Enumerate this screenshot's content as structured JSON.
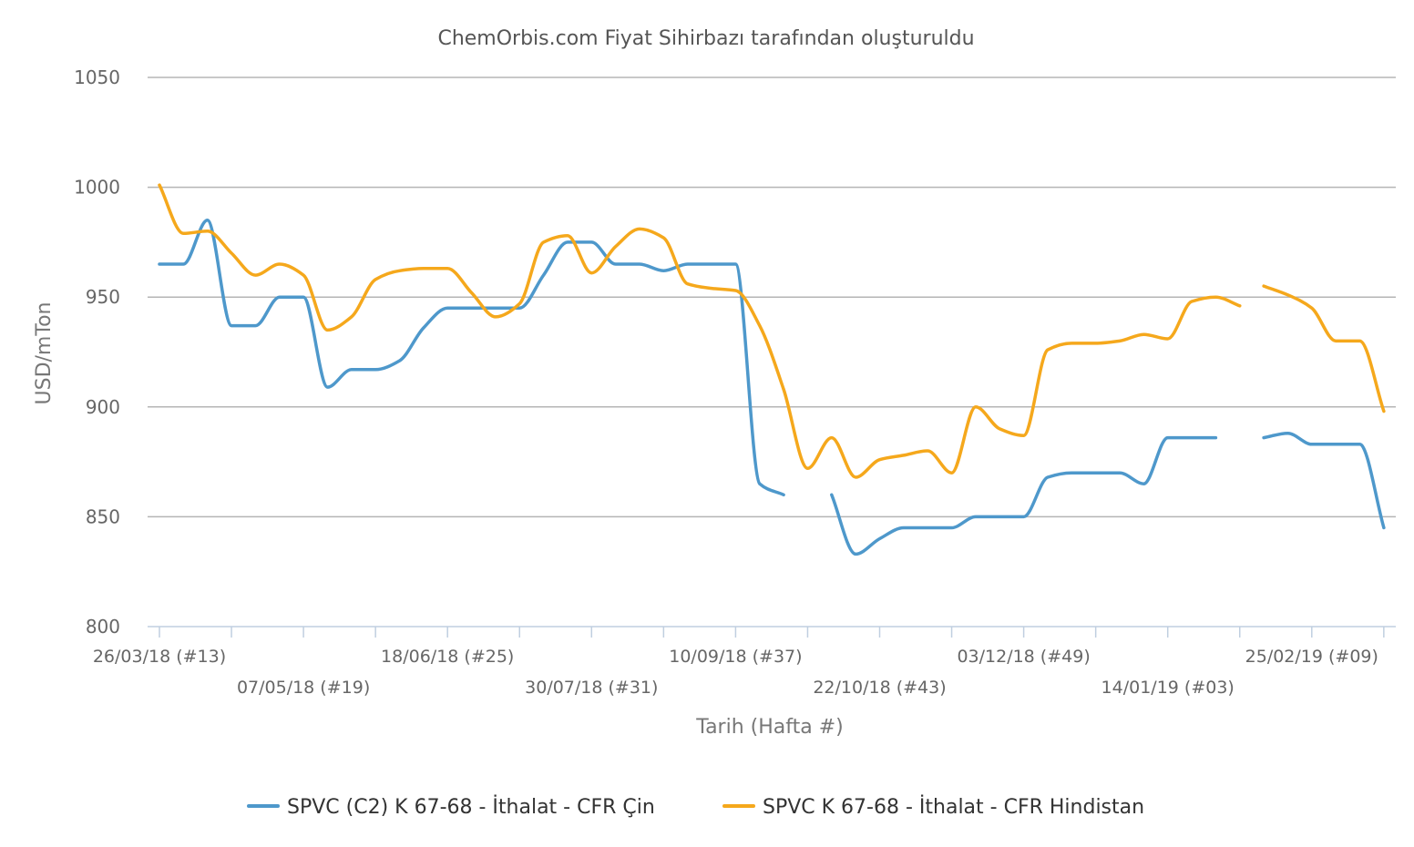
{
  "chart_data": {
    "type": "line",
    "title": "ChemOrbis.com Fiyat Sihirbazı tarafından oluşturuldu",
    "xlabel": "Tarih (Hafta #)",
    "ylabel": "USD/mTon",
    "ylim": [
      800,
      1050
    ],
    "yticks": [
      800,
      850,
      900,
      950,
      1000,
      1050
    ],
    "grid": true,
    "legend_position": "bottom",
    "x_tick_labels": [
      {
        "week": 0,
        "label": "26/03/18 (#13)"
      },
      {
        "week": 6,
        "label": "07/05/18 (#19)"
      },
      {
        "week": 12,
        "label": "18/06/18 (#25)"
      },
      {
        "week": 18,
        "label": "30/07/18 (#31)"
      },
      {
        "week": 24,
        "label": "10/09/18 (#37)"
      },
      {
        "week": 30,
        "label": "22/10/18 (#43)"
      },
      {
        "week": 36,
        "label": "03/12/18 (#49)"
      },
      {
        "week": 42,
        "label": "14/01/19 (#03)"
      },
      {
        "week": 48,
        "label": "25/02/19 (#09)"
      }
    ],
    "series": [
      {
        "name": "SPVC (C2) K 67-68 - İthalat - CFR Çin",
        "color": "#4e98cb",
        "segments": [
          [
            [
              0,
              965
            ],
            [
              1,
              965
            ],
            [
              2,
              985
            ],
            [
              3,
              937
            ],
            [
              4,
              937
            ],
            [
              5,
              950
            ],
            [
              6,
              950
            ],
            [
              7,
              909
            ],
            [
              8,
              917
            ],
            [
              9,
              917
            ],
            [
              10,
              921
            ],
            [
              11,
              936
            ],
            [
              12,
              945
            ],
            [
              13,
              945
            ],
            [
              14,
              945
            ],
            [
              15,
              945
            ],
            [
              16,
              960
            ],
            [
              17,
              975
            ],
            [
              18,
              975
            ],
            [
              19,
              965
            ],
            [
              20,
              965
            ],
            [
              21,
              962
            ],
            [
              22,
              965
            ],
            [
              23,
              965
            ],
            [
              24,
              965
            ],
            [
              25,
              865
            ],
            [
              26,
              860
            ]
          ],
          [
            [
              28,
              860
            ],
            [
              29,
              833
            ],
            [
              30,
              840
            ],
            [
              31,
              845
            ],
            [
              32,
              845
            ],
            [
              33,
              845
            ],
            [
              34,
              850
            ],
            [
              35,
              850
            ],
            [
              36,
              850
            ],
            [
              37,
              868
            ],
            [
              38,
              870
            ],
            [
              39,
              870
            ],
            [
              40,
              870
            ],
            [
              41,
              865
            ],
            [
              42,
              886
            ],
            [
              43,
              886
            ],
            [
              44,
              886
            ]
          ],
          [
            [
              46,
              886
            ],
            [
              47,
              888
            ],
            [
              48,
              883
            ],
            [
              49,
              883
            ],
            [
              50,
              883
            ],
            [
              51,
              845
            ]
          ]
        ]
      },
      {
        "name": "SPVC K 67-68 - İthalat - CFR Hindistan",
        "color": "#f5a81c",
        "segments": [
          [
            [
              0,
              1001
            ],
            [
              1,
              979
            ],
            [
              2,
              980
            ],
            [
              3,
              970
            ],
            [
              4,
              960
            ],
            [
              5,
              965
            ],
            [
              6,
              960
            ],
            [
              7,
              935
            ],
            [
              8,
              941
            ],
            [
              9,
              958
            ],
            [
              10,
              962
            ],
            [
              11,
              963
            ],
            [
              12,
              963
            ],
            [
              13,
              952
            ],
            [
              14,
              941
            ],
            [
              15,
              947
            ],
            [
              16,
              975
            ],
            [
              17,
              978
            ],
            [
              18,
              961
            ],
            [
              19,
              973
            ],
            [
              20,
              981
            ],
            [
              21,
              977
            ],
            [
              22,
              956
            ],
            [
              23,
              954
            ],
            [
              24,
              953
            ],
            [
              25,
              937
            ],
            [
              26,
              908
            ],
            [
              27,
              872
            ],
            [
              28,
              886
            ],
            [
              29,
              868
            ],
            [
              30,
              876
            ],
            [
              31,
              878
            ],
            [
              32,
              880
            ],
            [
              33,
              870
            ],
            [
              34,
              900
            ],
            [
              35,
              890
            ],
            [
              36,
              887
            ],
            [
              37,
              926
            ],
            [
              38,
              929
            ],
            [
              39,
              929
            ],
            [
              40,
              930
            ],
            [
              41,
              933
            ],
            [
              42,
              931
            ],
            [
              43,
              948
            ],
            [
              44,
              950
            ],
            [
              45,
              946
            ]
          ],
          [
            [
              46,
              955
            ],
            [
              47,
              951
            ],
            [
              48,
              945
            ],
            [
              49,
              930
            ],
            [
              50,
              930
            ],
            [
              51,
              898
            ]
          ]
        ]
      }
    ]
  }
}
